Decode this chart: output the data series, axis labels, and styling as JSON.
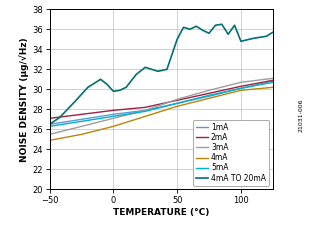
{
  "xlabel": "TEMPERATURE (°C)",
  "ylabel": "NOISE DENSITY (µg/√Hz)",
  "xlim": [
    -50,
    125
  ],
  "ylim": [
    20,
    38
  ],
  "xticks": [
    -50,
    0,
    50,
    100
  ],
  "yticks": [
    20,
    22,
    24,
    26,
    28,
    30,
    32,
    34,
    36,
    38
  ],
  "background_color": "#ffffff",
  "series": {
    "1mA": {
      "color": "#5b9bd5",
      "x": [
        -50,
        -25,
        0,
        25,
        50,
        75,
        100,
        125
      ],
      "y": [
        26.5,
        27.0,
        27.5,
        27.9,
        28.6,
        29.3,
        30.1,
        30.8
      ]
    },
    "2mA": {
      "color": "#a0213f",
      "x": [
        -50,
        -25,
        0,
        25,
        50,
        75,
        100,
        125
      ],
      "y": [
        27.1,
        27.5,
        27.9,
        28.2,
        28.9,
        29.6,
        30.3,
        30.9
      ]
    },
    "3mA": {
      "color": "#9e9e9e",
      "x": [
        -50,
        -25,
        0,
        25,
        50,
        75,
        100,
        125
      ],
      "y": [
        25.5,
        26.3,
        27.1,
        27.9,
        29.0,
        29.9,
        30.7,
        31.1
      ]
    },
    "4mA": {
      "color": "#b8860b",
      "x": [
        -50,
        -25,
        0,
        25,
        50,
        75,
        100,
        125
      ],
      "y": [
        24.9,
        25.5,
        26.3,
        27.3,
        28.3,
        29.1,
        29.9,
        30.2
      ]
    },
    "5mA": {
      "color": "#00b0c8",
      "x": [
        -50,
        -25,
        0,
        25,
        50,
        75,
        100,
        125
      ],
      "y": [
        26.3,
        26.8,
        27.3,
        27.8,
        28.6,
        29.4,
        30.1,
        30.7
      ]
    },
    "4mA TO 20mA": {
      "color": "#007070",
      "x": [
        -50,
        -42,
        -30,
        -20,
        -10,
        -5,
        0,
        5,
        10,
        18,
        25,
        35,
        42,
        50,
        55,
        60,
        65,
        70,
        75,
        80,
        85,
        90,
        95,
        100,
        110,
        120,
        125
      ],
      "y": [
        26.5,
        27.2,
        28.8,
        30.2,
        31.0,
        30.5,
        29.8,
        29.9,
        30.2,
        31.5,
        32.2,
        31.8,
        32.0,
        35.0,
        36.2,
        36.0,
        36.3,
        35.9,
        35.6,
        36.4,
        36.5,
        35.5,
        36.4,
        34.8,
        35.1,
        35.3,
        35.7
      ]
    }
  },
  "legend_order": [
    "1mA",
    "2mA",
    "3mA",
    "4mA",
    "5mA",
    "4mA TO 20mA"
  ],
  "legend_fontsize": 5.5,
  "axis_label_fontsize": 6.5,
  "tick_fontsize": 6.0,
  "right_label": "21031-006"
}
